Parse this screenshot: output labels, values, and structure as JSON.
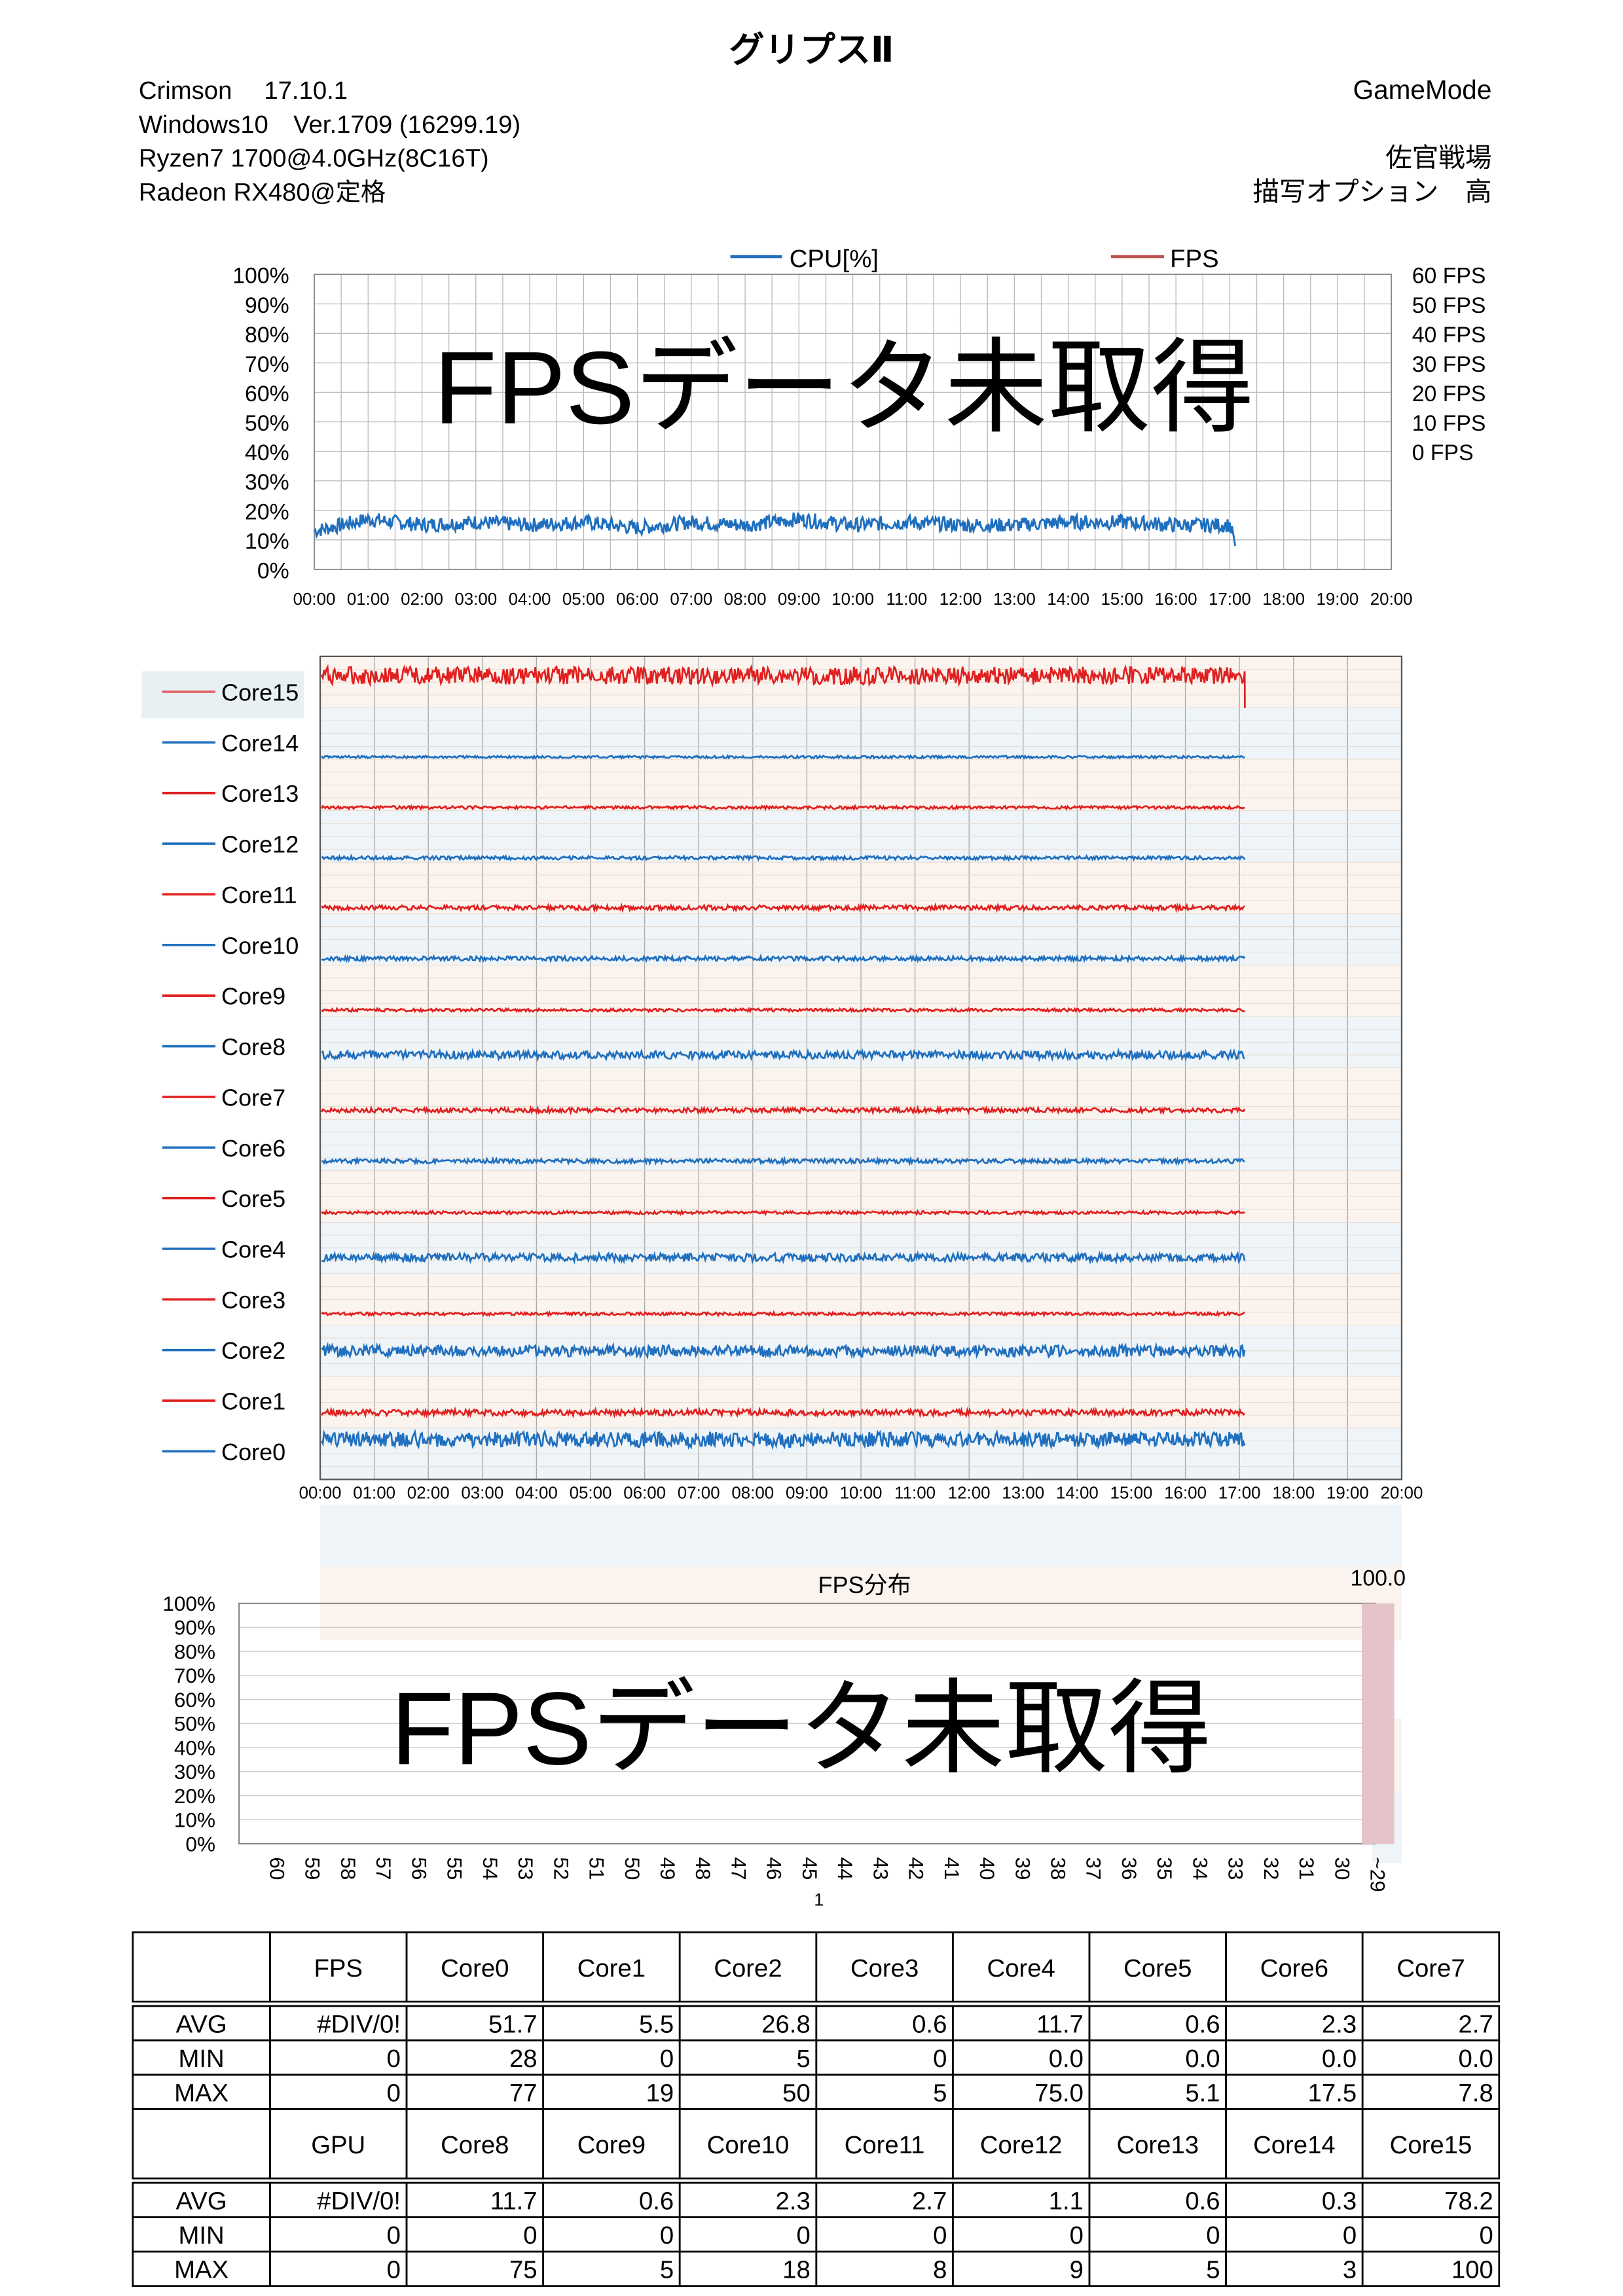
{
  "header": {
    "title": "グリプスⅡ",
    "left_lines": [
      "Crimson　 17.10.1",
      "Windows10　Ver.1709 (16299.19)",
      "Ryzen7 1700@4.0GHz(8C16T)",
      "Radeon RX480@定格"
    ],
    "right_lines": [
      "GameMode",
      "佐官戦場",
      "描写オプション　高"
    ]
  },
  "overlay_text": "FPSデータ未取得",
  "colors": {
    "cpu": "#1F6FBF",
    "fps": "#E02020",
    "fps_legend": "#C0504D",
    "band_blue": "#EEF4F8",
    "band_peach": "#FBF3EE",
    "fps_bar": "#E6C3C8"
  },
  "chart_data": [
    {
      "type": "line",
      "legend": [
        "CPU[%]",
        "FPS"
      ],
      "legend_placement": "top",
      "y_ticks": [
        "100%",
        "90%",
        "80%",
        "70%",
        "60%",
        "50%",
        "40%",
        "30%",
        "20%",
        "10%",
        "0%"
      ],
      "y2_ticks": [
        "60 FPS",
        "50 FPS",
        "40 FPS",
        "30 FPS",
        "20 FPS",
        "10 FPS",
        "0 FPS"
      ],
      "x_ticks": [
        "00:00",
        "01:00",
        "02:00",
        "03:00",
        "04:00",
        "05:00",
        "06:00",
        "07:00",
        "08:00",
        "09:00",
        "10:00",
        "11:00",
        "12:00",
        "13:00",
        "14:00",
        "15:00",
        "16:00",
        "17:00",
        "18:00",
        "19:00",
        "20:00"
      ],
      "ylim": [
        0,
        100
      ],
      "xlim_minutes": [
        0,
        20
      ],
      "grid": true,
      "series": [
        {
          "name": "CPU[%]",
          "x_minutes": [
            0,
            1,
            2,
            3,
            4,
            5,
            6,
            7,
            8,
            9,
            10,
            11,
            12,
            13,
            14,
            15,
            16,
            17,
            17.1
          ],
          "values": [
            13,
            17,
            15,
            16,
            15,
            16,
            14,
            16,
            15,
            17,
            15,
            16,
            15,
            15,
            16,
            16,
            15,
            15,
            8
          ]
        }
      ]
    },
    {
      "type": "line",
      "x_ticks": [
        "00:00",
        "01:00",
        "02:00",
        "03:00",
        "04:00",
        "05:00",
        "06:00",
        "07:00",
        "08:00",
        "09:00",
        "10:00",
        "11:00",
        "12:00",
        "13:00",
        "14:00",
        "15:00",
        "16:00",
        "17:00",
        "18:00",
        "19:00",
        "20:00"
      ],
      "grid": true,
      "series": [
        {
          "name": "Core15",
          "avg": 78.2
        },
        {
          "name": "Core14",
          "avg": 0.3
        },
        {
          "name": "Core13",
          "avg": 0.6
        },
        {
          "name": "Core12",
          "avg": 1.1
        },
        {
          "name": "Core11",
          "avg": 2.7
        },
        {
          "name": "Core10",
          "avg": 2.3
        },
        {
          "name": "Core9",
          "avg": 0.6
        },
        {
          "name": "Core8",
          "avg": 11.7
        },
        {
          "name": "Core7",
          "avg": 2.7
        },
        {
          "name": "Core6",
          "avg": 2.3
        },
        {
          "name": "Core5",
          "avg": 0.6
        },
        {
          "name": "Core4",
          "avg": 11.7
        },
        {
          "name": "Core3",
          "avg": 0.6
        },
        {
          "name": "Core2",
          "avg": 26.8
        },
        {
          "name": "Core1",
          "avg": 5.5
        },
        {
          "name": "Core0",
          "avg": 51.7
        }
      ]
    },
    {
      "type": "bar",
      "title": "FPS分布",
      "categories": [
        "60",
        "59",
        "58",
        "57",
        "56",
        "55",
        "54",
        "53",
        "52",
        "51",
        "50",
        "49",
        "48",
        "47",
        "46",
        "45",
        "44",
        "43",
        "42",
        "41",
        "40",
        "39",
        "38",
        "37",
        "36",
        "35",
        "34",
        "33",
        "32",
        "31",
        "30",
        "~29"
      ],
      "values": [
        0,
        0,
        0,
        0,
        0,
        0,
        0,
        0,
        0,
        0,
        0,
        0,
        0,
        0,
        0,
        0,
        0,
        0,
        0,
        0,
        0,
        0,
        0,
        0,
        0,
        0,
        0,
        0,
        0,
        0,
        0,
        100.0
      ],
      "data_label": "100.0",
      "extra_tick": "1",
      "y_ticks": [
        "100%",
        "90%",
        "80%",
        "70%",
        "60%",
        "50%",
        "40%",
        "30%",
        "20%",
        "10%",
        "0%"
      ],
      "ylim": [
        0,
        100
      ],
      "grid": true
    }
  ],
  "table": {
    "blocks": [
      {
        "headers": [
          "",
          "FPS",
          "Core0",
          "Core1",
          "Core2",
          "Core3",
          "Core4",
          "Core5",
          "Core6",
          "Core7"
        ],
        "rows": [
          [
            "AVG",
            "#DIV/0!",
            "51.7",
            "5.5",
            "26.8",
            "0.6",
            "11.7",
            "0.6",
            "2.3",
            "2.7"
          ],
          [
            "MIN",
            "0",
            "28",
            "0",
            "5",
            "0",
            "0.0",
            "0.0",
            "0.0",
            "0.0"
          ],
          [
            "MAX",
            "0",
            "77",
            "19",
            "50",
            "5",
            "75.0",
            "5.1",
            "17.5",
            "7.8"
          ]
        ]
      },
      {
        "headers": [
          "",
          "GPU",
          "Core8",
          "Core9",
          "Core10",
          "Core11",
          "Core12",
          "Core13",
          "Core14",
          "Core15"
        ],
        "rows": [
          [
            "AVG",
            "#DIV/0!",
            "11.7",
            "0.6",
            "2.3",
            "2.7",
            "1.1",
            "0.6",
            "0.3",
            "78.2"
          ],
          [
            "MIN",
            "0",
            "0",
            "0",
            "0",
            "0",
            "0",
            "0",
            "0",
            "0"
          ],
          [
            "MAX",
            "0",
            "75",
            "5",
            "18",
            "8",
            "9",
            "5",
            "3",
            "100"
          ]
        ]
      }
    ]
  }
}
